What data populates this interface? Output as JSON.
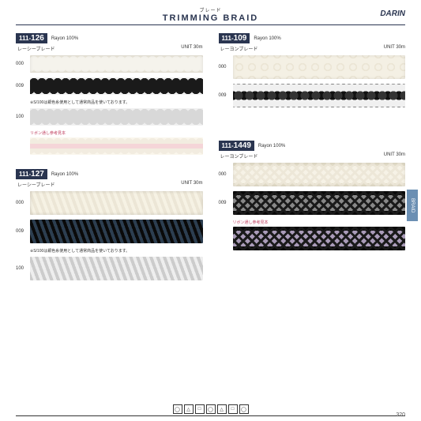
{
  "header": {
    "subtitle": "ブレード",
    "title": "TRIMMING BRAID",
    "logo": "DARIN"
  },
  "sideTab": "BRAID",
  "pageNumber": "320",
  "note": "※S/100は銀色糸使用として通常商品を使いております。",
  "ribbonNote": "リボン通し参考見本",
  "products": {
    "p126": {
      "codePrefix": "111-",
      "codeNum": "126",
      "material": "Rayon 100%",
      "jpName": "レーシーブレード",
      "unit": "UNIT 30m",
      "swatches": [
        {
          "code": "000"
        },
        {
          "code": "009"
        },
        {
          "code": "100"
        }
      ]
    },
    "p109": {
      "codePrefix": "111-",
      "codeNum": "109",
      "material": "Rayon 100%",
      "jpName": "レーヨンブレード",
      "unit": "UNIT 30m",
      "swatches": [
        {
          "code": "000"
        },
        {
          "code": "009"
        }
      ]
    },
    "p127": {
      "codePrefix": "111-",
      "codeNum": "127",
      "material": "Rayon 100%",
      "jpName": "レーシーブレード",
      "unit": "UNIT 30m",
      "swatches": [
        {
          "code": "000"
        },
        {
          "code": "009"
        },
        {
          "code": "100"
        }
      ]
    },
    "p1449": {
      "codePrefix": "111-",
      "codeNum": "1449",
      "material": "Rayon 100%",
      "jpName": "レーヨンブレード",
      "unit": "UNIT 30m",
      "swatches": [
        {
          "code": "000"
        },
        {
          "code": "009"
        }
      ]
    }
  },
  "careSymbols": [
    "◯",
    "△",
    "□",
    "◯",
    "△",
    "□",
    "◯"
  ]
}
